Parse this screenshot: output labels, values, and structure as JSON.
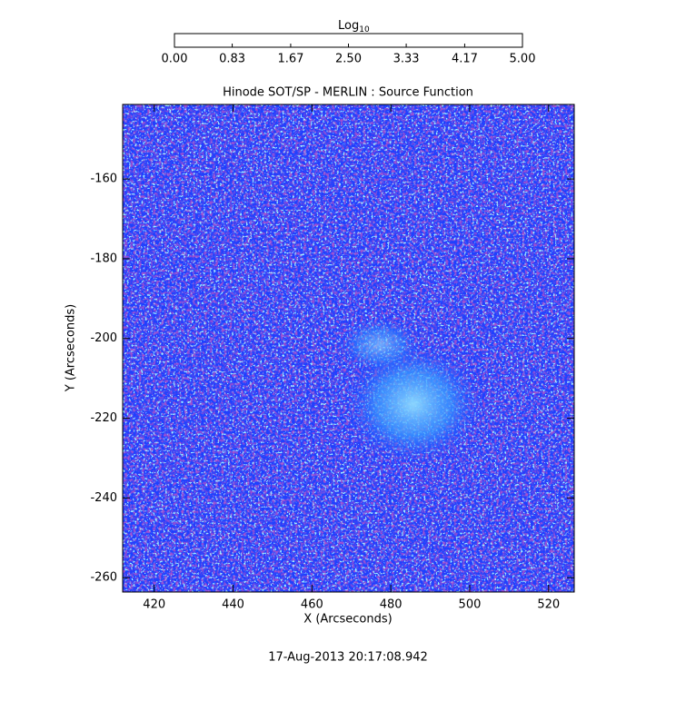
{
  "chart_data": {
    "type": "image",
    "title": "Hinode SOT/SP - MERLIN : Source Function",
    "xlabel": "X (Arcseconds)",
    "ylabel": "Y (Arcseconds)",
    "xlim": [
      412,
      526.5
    ],
    "ylim": [
      -263.6,
      -141.3
    ],
    "xticks": [
      420,
      440,
      460,
      480,
      500,
      520
    ],
    "yticks": [
      -260,
      -240,
      -220,
      -200,
      -180,
      -160
    ],
    "colorbar": {
      "label": "Log",
      "label_subscript": "10",
      "lim": [
        0,
        5
      ],
      "ticks": [
        {
          "value": 0,
          "label": "0.00"
        },
        {
          "value": 0.83,
          "label": "0.83"
        },
        {
          "value": 1.67,
          "label": "1.67"
        },
        {
          "value": 2.5,
          "label": "2.50"
        },
        {
          "value": 3.33,
          "label": "3.33"
        },
        {
          "value": 4.17,
          "label": "4.17"
        },
        {
          "value": 5,
          "label": "5.00"
        }
      ],
      "colors": [
        "#ff0000",
        "#ff8c00",
        "#ffff00",
        "#7fff00",
        "#00ff80",
        "#00ffff",
        "#0050ff",
        "#2000ff",
        "#6000a0",
        "#000000"
      ]
    },
    "footer": "17-Aug-2013 20:17:08.942"
  }
}
